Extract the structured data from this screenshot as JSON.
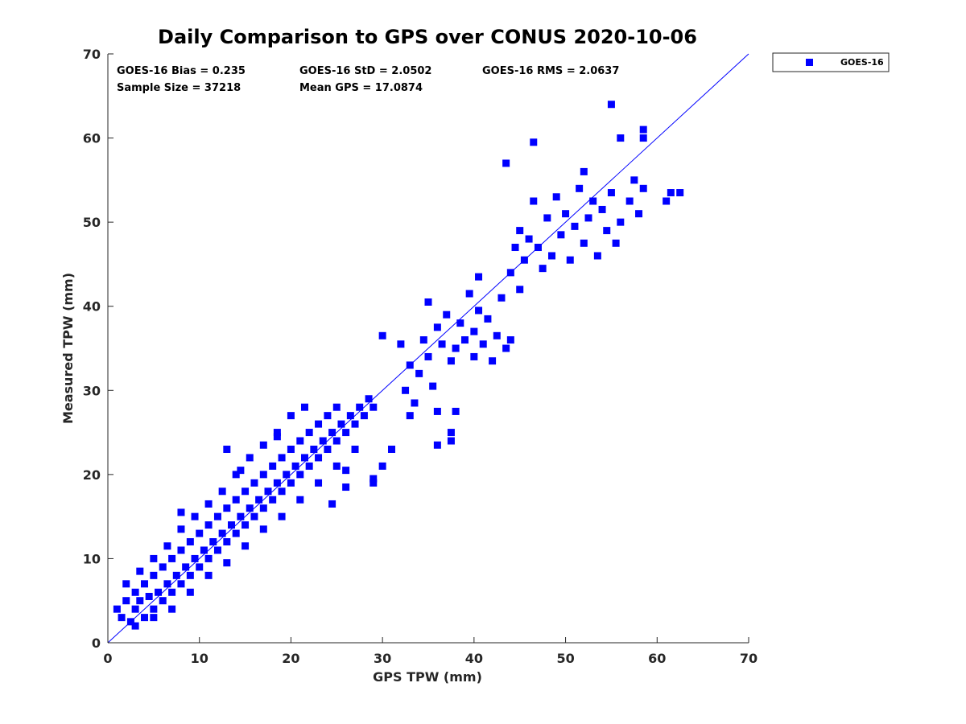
{
  "chart_data": {
    "type": "scatter",
    "title": "Daily Comparison to GPS over CONUS 2020-10-06",
    "xlabel": "GPS TPW (mm)",
    "ylabel": "Measured TPW (mm)",
    "xlim": [
      0,
      70
    ],
    "ylim": [
      0,
      70
    ],
    "xticks": [
      "0",
      "10",
      "20",
      "30",
      "40",
      "50",
      "60",
      "70"
    ],
    "yticks": [
      "0",
      "10",
      "20",
      "30",
      "40",
      "50",
      "60",
      "70"
    ],
    "grid": false,
    "legend_position": "outside-top-right",
    "stats": {
      "bias": "GOES-16 Bias = 0.235",
      "std": "GOES-16 StD = 2.0502",
      "rms": "GOES-16 RMS = 2.0637",
      "sample_size": "Sample Size = 37218",
      "mean_gps": "Mean GPS = 17.0874"
    },
    "reference_line": {
      "name": "1:1 line",
      "x": [
        0,
        70
      ],
      "y": [
        0,
        70
      ],
      "color": "#0000ff"
    },
    "series": [
      {
        "name": "GOES-16",
        "marker": "square",
        "color": "#0000ff",
        "points": [
          [
            1.0,
            4.0
          ],
          [
            1.5,
            3.0
          ],
          [
            2.0,
            5.0
          ],
          [
            2.5,
            2.5
          ],
          [
            3.0,
            4.0
          ],
          [
            3.0,
            6.0
          ],
          [
            3.5,
            5.0
          ],
          [
            4.0,
            3.0
          ],
          [
            4.0,
            7.0
          ],
          [
            4.5,
            5.5
          ],
          [
            5.0,
            4.0
          ],
          [
            5.0,
            8.0
          ],
          [
            5.5,
            6.0
          ],
          [
            6.0,
            5.0
          ],
          [
            6.0,
            9.0
          ],
          [
            6.5,
            7.0
          ],
          [
            7.0,
            6.0
          ],
          [
            7.0,
            10.0
          ],
          [
            7.5,
            8.0
          ],
          [
            8.0,
            7.0
          ],
          [
            8.0,
            11.0
          ],
          [
            8.5,
            9.0
          ],
          [
            9.0,
            8.0
          ],
          [
            9.0,
            12.0
          ],
          [
            9.5,
            10.0
          ],
          [
            10.0,
            9.0
          ],
          [
            10.0,
            13.0
          ],
          [
            10.5,
            11.0
          ],
          [
            11.0,
            10.0
          ],
          [
            11.0,
            14.0
          ],
          [
            11.5,
            12.0
          ],
          [
            12.0,
            11.0
          ],
          [
            12.0,
            15.0
          ],
          [
            12.5,
            13.0
          ],
          [
            13.0,
            12.0
          ],
          [
            13.0,
            16.0
          ],
          [
            13.5,
            14.0
          ],
          [
            14.0,
            13.0
          ],
          [
            14.0,
            17.0
          ],
          [
            14.5,
            15.0
          ],
          [
            15.0,
            14.0
          ],
          [
            15.0,
            18.0
          ],
          [
            15.5,
            16.0
          ],
          [
            16.0,
            15.0
          ],
          [
            16.0,
            19.0
          ],
          [
            16.5,
            17.0
          ],
          [
            17.0,
            16.0
          ],
          [
            17.0,
            20.0
          ],
          [
            17.5,
            18.0
          ],
          [
            18.0,
            17.0
          ],
          [
            18.0,
            21.0
          ],
          [
            18.5,
            19.0
          ],
          [
            19.0,
            18.0
          ],
          [
            19.0,
            22.0
          ],
          [
            19.5,
            20.0
          ],
          [
            20.0,
            19.0
          ],
          [
            20.0,
            23.0
          ],
          [
            20.5,
            21.0
          ],
          [
            21.0,
            20.0
          ],
          [
            21.0,
            24.0
          ],
          [
            21.5,
            22.0
          ],
          [
            22.0,
            21.0
          ],
          [
            22.0,
            25.0
          ],
          [
            22.5,
            23.0
          ],
          [
            23.0,
            22.0
          ],
          [
            23.0,
            26.0
          ],
          [
            23.5,
            24.0
          ],
          [
            24.0,
            23.0
          ],
          [
            24.0,
            27.0
          ],
          [
            24.5,
            25.0
          ],
          [
            25.0,
            24.0
          ],
          [
            25.0,
            28.0
          ],
          [
            25.5,
            26.0
          ],
          [
            26.0,
            25.0
          ],
          [
            26.5,
            27.0
          ],
          [
            27.0,
            26.0
          ],
          [
            27.5,
            28.0
          ],
          [
            28.0,
            27.0
          ],
          [
            28.5,
            29.0
          ],
          [
            29.0,
            28.0
          ],
          [
            2.0,
            7.0
          ],
          [
            3.5,
            8.5
          ],
          [
            5.0,
            10.0
          ],
          [
            6.5,
            11.5
          ],
          [
            8.0,
            13.5
          ],
          [
            9.5,
            15.0
          ],
          [
            11.0,
            16.5
          ],
          [
            12.5,
            18.0
          ],
          [
            14.0,
            20.0
          ],
          [
            15.5,
            22.0
          ],
          [
            17.0,
            23.5
          ],
          [
            18.5,
            25.0
          ],
          [
            20.0,
            27.0
          ],
          [
            21.5,
            28.0
          ],
          [
            3.0,
            2.0
          ],
          [
            5.0,
            3.0
          ],
          [
            7.0,
            4.0
          ],
          [
            9.0,
            6.0
          ],
          [
            11.0,
            8.0
          ],
          [
            13.0,
            9.5
          ],
          [
            15.0,
            11.5
          ],
          [
            17.0,
            13.5
          ],
          [
            19.0,
            15.0
          ],
          [
            21.0,
            17.0
          ],
          [
            23.0,
            19.0
          ],
          [
            25.0,
            21.0
          ],
          [
            27.0,
            23.0
          ],
          [
            8.0,
            15.5
          ],
          [
            13.0,
            23.0
          ],
          [
            14.5,
            20.5
          ],
          [
            18.5,
            24.5
          ],
          [
            24.5,
            16.5
          ],
          [
            26.0,
            20.5
          ],
          [
            26.0,
            18.5
          ],
          [
            29.0,
            19.5
          ],
          [
            30.0,
            36.5
          ],
          [
            32.0,
            35.5
          ],
          [
            32.5,
            30.0
          ],
          [
            33.0,
            33.0
          ],
          [
            33.5,
            28.5
          ],
          [
            34.0,
            32.0
          ],
          [
            34.5,
            36.0
          ],
          [
            35.0,
            34.0
          ],
          [
            35.0,
            40.5
          ],
          [
            35.5,
            30.5
          ],
          [
            36.0,
            37.5
          ],
          [
            36.5,
            35.5
          ],
          [
            37.0,
            39.0
          ],
          [
            37.5,
            33.5
          ],
          [
            37.5,
            25.0
          ],
          [
            38.0,
            35.0
          ],
          [
            38.5,
            38.0
          ],
          [
            39.0,
            36.0
          ],
          [
            39.5,
            41.5
          ],
          [
            40.0,
            34.0
          ],
          [
            40.0,
            37.0
          ],
          [
            40.5,
            39.5
          ],
          [
            41.0,
            35.5
          ],
          [
            41.5,
            38.5
          ],
          [
            42.0,
            33.5
          ],
          [
            42.5,
            36.5
          ],
          [
            43.0,
            41.0
          ],
          [
            43.5,
            35.0
          ],
          [
            44.0,
            44.0
          ],
          [
            44.5,
            47.0
          ],
          [
            45.0,
            49.0
          ],
          [
            45.0,
            42.0
          ],
          [
            45.5,
            45.5
          ],
          [
            46.0,
            48.0
          ],
          [
            46.5,
            52.5
          ],
          [
            47.0,
            47.0
          ],
          [
            47.5,
            44.5
          ],
          [
            48.0,
            50.5
          ],
          [
            48.5,
            46.0
          ],
          [
            49.0,
            53.0
          ],
          [
            49.5,
            48.5
          ],
          [
            50.0,
            51.0
          ],
          [
            50.5,
            45.5
          ],
          [
            51.0,
            49.5
          ],
          [
            51.5,
            54.0
          ],
          [
            52.0,
            47.5
          ],
          [
            52.5,
            50.5
          ],
          [
            53.0,
            52.5
          ],
          [
            53.5,
            46.0
          ],
          [
            54.0,
            51.5
          ],
          [
            54.5,
            49.0
          ],
          [
            55.0,
            53.5
          ],
          [
            55.5,
            47.5
          ],
          [
            56.0,
            50.0
          ],
          [
            57.0,
            52.5
          ],
          [
            57.5,
            55.0
          ],
          [
            58.0,
            51.0
          ],
          [
            58.5,
            54.0
          ],
          [
            46.5,
            59.5
          ],
          [
            43.5,
            57.0
          ],
          [
            55.0,
            64.0
          ],
          [
            56.0,
            60.0
          ],
          [
            58.5,
            61.0
          ],
          [
            58.5,
            60.0
          ],
          [
            61.0,
            52.5
          ],
          [
            61.5,
            53.5
          ],
          [
            62.5,
            53.5
          ],
          [
            52.0,
            56.0
          ],
          [
            44.0,
            36.0
          ],
          [
            40.5,
            43.5
          ],
          [
            37.5,
            24.0
          ],
          [
            36.0,
            27.5
          ],
          [
            38.0,
            27.5
          ],
          [
            30.0,
            21.0
          ],
          [
            29.0,
            19.0
          ],
          [
            31.0,
            23.0
          ],
          [
            33.0,
            27.0
          ],
          [
            36.0,
            23.5
          ]
        ]
      }
    ]
  }
}
